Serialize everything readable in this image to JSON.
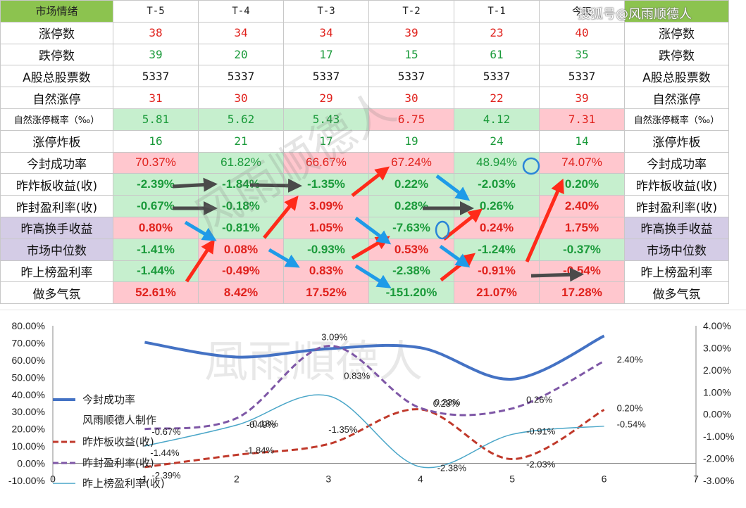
{
  "table": {
    "header": [
      "市场情绪",
      "T-5",
      "T-4",
      "T-3",
      "T-2",
      "T-1",
      "今天"
    ],
    "rows": [
      {
        "label": "涨停数",
        "kind": "num",
        "cells": [
          {
            "v": "38",
            "c": "red"
          },
          {
            "v": "34",
            "c": "red"
          },
          {
            "v": "34",
            "c": "red"
          },
          {
            "v": "39",
            "c": "red"
          },
          {
            "v": "23",
            "c": "red"
          },
          {
            "v": "40",
            "c": "red"
          }
        ]
      },
      {
        "label": "跌停数",
        "kind": "num",
        "cells": [
          {
            "v": "39",
            "c": "green"
          },
          {
            "v": "20",
            "c": "green"
          },
          {
            "v": "17",
            "c": "green"
          },
          {
            "v": "15",
            "c": "green"
          },
          {
            "v": "61",
            "c": "green"
          },
          {
            "v": "35",
            "c": "green"
          }
        ]
      },
      {
        "label": "A股总股票数",
        "kind": "num",
        "cells": [
          {
            "v": "5337",
            "c": "black"
          },
          {
            "v": "5337",
            "c": "black"
          },
          {
            "v": "5337",
            "c": "black"
          },
          {
            "v": "5337",
            "c": "black"
          },
          {
            "v": "5337",
            "c": "black"
          },
          {
            "v": "5337",
            "c": "black"
          }
        ]
      },
      {
        "label": "自然涨停",
        "kind": "num",
        "cells": [
          {
            "v": "31",
            "c": "red"
          },
          {
            "v": "30",
            "c": "red"
          },
          {
            "v": "29",
            "c": "red"
          },
          {
            "v": "30",
            "c": "red"
          },
          {
            "v": "22",
            "c": "red"
          },
          {
            "v": "39",
            "c": "red"
          }
        ]
      },
      {
        "label": "自然涨停概率（‰）",
        "kind": "num",
        "small": true,
        "cells": [
          {
            "v": "5.81",
            "c": "green",
            "bg": "G"
          },
          {
            "v": "5.62",
            "c": "green",
            "bg": "G"
          },
          {
            "v": "5.43",
            "c": "green",
            "bg": "G"
          },
          {
            "v": "6.75",
            "c": "red",
            "bg": "R"
          },
          {
            "v": "4.12",
            "c": "green",
            "bg": "G"
          },
          {
            "v": "7.31",
            "c": "red",
            "bg": "R"
          }
        ]
      },
      {
        "label": "涨停炸板",
        "kind": "num",
        "cells": [
          {
            "v": "16",
            "c": "green"
          },
          {
            "v": "21",
            "c": "green"
          },
          {
            "v": "17",
            "c": "green"
          },
          {
            "v": "19",
            "c": "green"
          },
          {
            "v": "24",
            "c": "green"
          },
          {
            "v": "14",
            "c": "green"
          }
        ]
      },
      {
        "label": "今封成功率",
        "kind": "pct",
        "cells": [
          {
            "v": "70.37%",
            "c": "red",
            "bg": "R",
            "weight": "normal"
          },
          {
            "v": "61.82%",
            "c": "green",
            "bg": "G",
            "weight": "normal"
          },
          {
            "v": "66.67%",
            "c": "red",
            "bg": "R",
            "weight": "normal"
          },
          {
            "v": "67.24%",
            "c": "red",
            "bg": "R",
            "weight": "normal"
          },
          {
            "v": "48.94%",
            "c": "green",
            "bg": "G",
            "weight": "normal"
          },
          {
            "v": "74.07%",
            "c": "red",
            "bg": "R",
            "weight": "normal"
          }
        ]
      },
      {
        "label": "昨炸板收益(收)",
        "kind": "pct",
        "cells": [
          {
            "v": "-2.39%",
            "c": "green",
            "bg": "G"
          },
          {
            "v": "-1.84%",
            "c": "green",
            "bg": "G"
          },
          {
            "v": "-1.35%",
            "c": "green",
            "bg": "G"
          },
          {
            "v": "0.22%",
            "c": "green",
            "bg": "G"
          },
          {
            "v": "-2.03%",
            "c": "green",
            "bg": "G"
          },
          {
            "v": "0.20%",
            "c": "green",
            "bg": "G"
          }
        ]
      },
      {
        "label": "昨封盈利率(收)",
        "kind": "pct",
        "cells": [
          {
            "v": "-0.67%",
            "c": "green",
            "bg": "G"
          },
          {
            "v": "-0.18%",
            "c": "green",
            "bg": "G"
          },
          {
            "v": "3.09%",
            "c": "red",
            "bg": "R"
          },
          {
            "v": "0.28%",
            "c": "green",
            "bg": "G"
          },
          {
            "v": "0.26%",
            "c": "green",
            "bg": "G"
          },
          {
            "v": "2.40%",
            "c": "red",
            "bg": "R"
          }
        ]
      },
      {
        "label": "昨高换手收益",
        "kind": "pct",
        "lbg": "P",
        "cells": [
          {
            "v": "0.80%",
            "c": "red",
            "bg": "R"
          },
          {
            "v": "-0.81%",
            "c": "green",
            "bg": "G"
          },
          {
            "v": "1.05%",
            "c": "red",
            "bg": "R"
          },
          {
            "v": "-7.63%",
            "c": "green",
            "bg": "G"
          },
          {
            "v": "0.24%",
            "c": "red",
            "bg": "R"
          },
          {
            "v": "1.75%",
            "c": "red",
            "bg": "R"
          }
        ]
      },
      {
        "label": "市场中位数",
        "kind": "pct",
        "lbg": "P",
        "cells": [
          {
            "v": "-1.41%",
            "c": "green",
            "bg": "G"
          },
          {
            "v": "0.08%",
            "c": "red",
            "bg": "R"
          },
          {
            "v": "-0.93%",
            "c": "green",
            "bg": "G"
          },
          {
            "v": "0.53%",
            "c": "red",
            "bg": "R"
          },
          {
            "v": "-1.24%",
            "c": "green",
            "bg": "G"
          },
          {
            "v": "-0.37%",
            "c": "green",
            "bg": "G"
          }
        ]
      },
      {
        "label": "昨上榜盈利率",
        "kind": "pct",
        "cells": [
          {
            "v": "-1.44%",
            "c": "green",
            "bg": "G"
          },
          {
            "v": "-0.49%",
            "c": "red",
            "bg": "R"
          },
          {
            "v": "0.83%",
            "c": "red",
            "bg": "R"
          },
          {
            "v": "-2.38%",
            "c": "green",
            "bg": "G"
          },
          {
            "v": "-0.91%",
            "c": "red",
            "bg": "R"
          },
          {
            "v": "-0.54%",
            "c": "red",
            "bg": "R"
          }
        ]
      },
      {
        "label": "做多气氛",
        "kind": "pct",
        "cells": [
          {
            "v": "52.61%",
            "c": "red",
            "bg": "R"
          },
          {
            "v": "8.42%",
            "c": "red",
            "bg": "R"
          },
          {
            "v": "17.52%",
            "c": "red",
            "bg": "R"
          },
          {
            "v": "-151.20%",
            "c": "green",
            "bg": "G"
          },
          {
            "v": "21.07%",
            "c": "red",
            "bg": "R"
          },
          {
            "v": "17.28%",
            "c": "red",
            "bg": "R"
          }
        ]
      }
    ]
  },
  "watermarks": {
    "top_right": "搜狐号@风雨顺德人",
    "table": "风雨顺德人",
    "chart": "風雨順德人"
  },
  "colors": {
    "header_green": "#8cc34f",
    "cell_green_bg": "#c6efce",
    "cell_red_bg": "#ffc7ce",
    "label_purple_bg": "#d4cce6",
    "text_red": "#e0211c",
    "text_green": "#1a9a3a",
    "arrow_red": "#ff2a1a",
    "arrow_blue": "#1e9be8",
    "arrow_dark": "#4a4a4a"
  },
  "chart_data": {
    "type": "line",
    "x": [
      1,
      2,
      3,
      4,
      5,
      6
    ],
    "xlim": [
      0,
      7
    ],
    "xticks": [
      "0",
      "1",
      "2",
      "3",
      "4",
      "5",
      "6",
      "7"
    ],
    "y_left": {
      "ylim": [
        -10,
        80
      ],
      "ticks": [
        "-10.00%",
        "0.00%",
        "10.00%",
        "20.00%",
        "30.00%",
        "40.00%",
        "50.00%",
        "60.00%",
        "70.00%",
        "80.00%"
      ]
    },
    "y_right": {
      "ylim": [
        -3,
        4
      ],
      "ticks": [
        "-3.00%",
        "-2.00%",
        "-1.00%",
        "0.00%",
        "1.00%",
        "2.00%",
        "3.00%",
        "4.00%"
      ]
    },
    "grid": false,
    "legend_position": "left",
    "legend_extra": "风雨顺德人制作",
    "series": [
      {
        "name": "今封成功率",
        "axis": "left",
        "color": "#4472c4",
        "dash": "solid",
        "width": 4,
        "values": [
          70.37,
          61.82,
          66.67,
          67.24,
          48.94,
          74.07
        ],
        "labels": []
      },
      {
        "name": "昨炸板收益(收)",
        "axis": "right",
        "color": "#c0392b",
        "dash": "dashed",
        "width": 3,
        "values": [
          -2.39,
          -1.84,
          -1.35,
          0.22,
          -2.03,
          0.2
        ],
        "labels": [
          "-2.39%",
          "-1.84%",
          "-1.35%",
          "0.22%",
          "-2.03%",
          "0.20%"
        ]
      },
      {
        "name": "昨封盈利率(收)",
        "axis": "right",
        "color": "#7e57a6",
        "dash": "dashed",
        "width": 3,
        "values": [
          -0.67,
          -0.18,
          3.09,
          0.28,
          0.26,
          2.4
        ],
        "labels": [
          "-0.67%",
          "-0.18%",
          "3.09%",
          "0.28%",
          "0.26%",
          "2.40%"
        ]
      },
      {
        "name": "昨上榜盈利率(收)",
        "axis": "right",
        "color": "#4aa6c8",
        "dash": "solid",
        "width": 1.5,
        "values": [
          -1.44,
          -0.49,
          0.83,
          -2.38,
          -0.91,
          -0.54
        ],
        "labels": [
          "-1.44%",
          "-0.49%",
          "0.83%",
          "-2.38%",
          "-0.91%",
          "-0.54%"
        ]
      }
    ]
  }
}
